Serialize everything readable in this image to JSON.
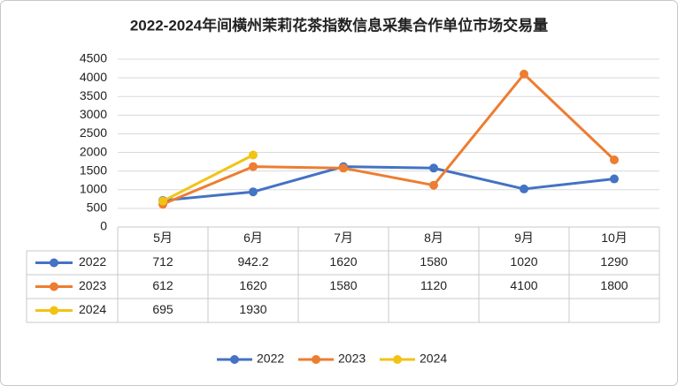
{
  "chart_data": {
    "type": "line",
    "title": "2022-2024年间横州茉莉花茶指数信息采集合作单位市场交易量",
    "categories": [
      "5月",
      "6月",
      "7月",
      "8月",
      "9月",
      "10月"
    ],
    "series": [
      {
        "name": "2022",
        "color": "#4472c4",
        "values": [
          712,
          942.2,
          1620,
          1580,
          1020,
          1290
        ]
      },
      {
        "name": "2023",
        "color": "#ed7d31",
        "values": [
          612,
          1620,
          1580,
          1120,
          4100,
          1800
        ]
      },
      {
        "name": "2024",
        "color": "#f2c314",
        "values": [
          695,
          1930,
          null,
          null,
          null,
          null
        ]
      }
    ],
    "ylim": [
      0,
      4500
    ],
    "yticks": [
      0,
      500,
      1000,
      1500,
      2000,
      2500,
      3000,
      3500,
      4000,
      4500
    ],
    "grid": true,
    "legend": "bottom",
    "data_table": true
  }
}
